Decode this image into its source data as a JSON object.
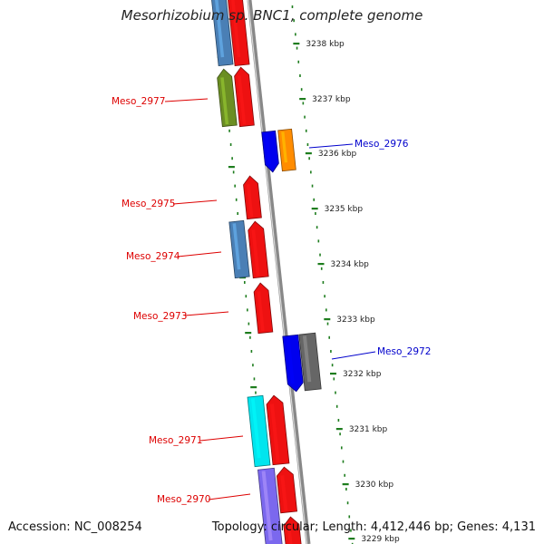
{
  "title": "Mesorhizobium sp. BNC1, complete genome",
  "accession": "Accession: NC_008254",
  "topology": "Topology: circular; Length: 4,412,446 bp; Genes: 4,131",
  "colors": {
    "forward_label": "#dd0000",
    "reverse_label": "#0000cc",
    "ticks": "#1e7d1e",
    "backbone": "#888888"
  },
  "scale": {
    "labels": [
      "3238 kbp",
      "3237 kbp",
      "3236 kbp",
      "3235 kbp",
      "3234 kbp",
      "3233 kbp",
      "3232 kbp",
      "3231 kbp",
      "3230 kbp",
      "3229 kbp"
    ]
  },
  "gene_labels": [
    {
      "name": "Meso_2977",
      "strand": "forward"
    },
    {
      "name": "Meso_2976",
      "strand": "reverse"
    },
    {
      "name": "Meso_2975",
      "strand": "forward"
    },
    {
      "name": "Meso_2974",
      "strand": "forward"
    },
    {
      "name": "Meso_2973",
      "strand": "forward"
    },
    {
      "name": "Meso_2972",
      "strand": "reverse"
    },
    {
      "name": "Meso_2971",
      "strand": "forward"
    },
    {
      "name": "Meso_2970",
      "strand": "forward"
    }
  ],
  "features": [
    {
      "name": "cds-a1",
      "color": "#4a7fb5"
    },
    {
      "name": "cds-a2",
      "color": "#ee1111"
    },
    {
      "name": "cds-b1",
      "color": "#6b8e23"
    },
    {
      "name": "cds-b2",
      "color": "#ee1111"
    },
    {
      "name": "cds-c1",
      "color": "#0000ee"
    },
    {
      "name": "cds-c2",
      "color": "#ff8c00"
    },
    {
      "name": "cds-d",
      "color": "#ee1111"
    },
    {
      "name": "cds-e1",
      "color": "#4a7fb5"
    },
    {
      "name": "cds-e2",
      "color": "#ee1111"
    },
    {
      "name": "cds-f",
      "color": "#ee1111"
    },
    {
      "name": "cds-g1",
      "color": "#0000ee"
    },
    {
      "name": "cds-g2",
      "color": "#666666"
    },
    {
      "name": "cds-h1",
      "color": "#00e5ee"
    },
    {
      "name": "cds-h2",
      "color": "#ee1111"
    },
    {
      "name": "cds-i1",
      "color": "#7b68ee"
    },
    {
      "name": "cds-i2",
      "color": "#ee1111"
    },
    {
      "name": "cds-j",
      "color": "#ee1111"
    }
  ]
}
